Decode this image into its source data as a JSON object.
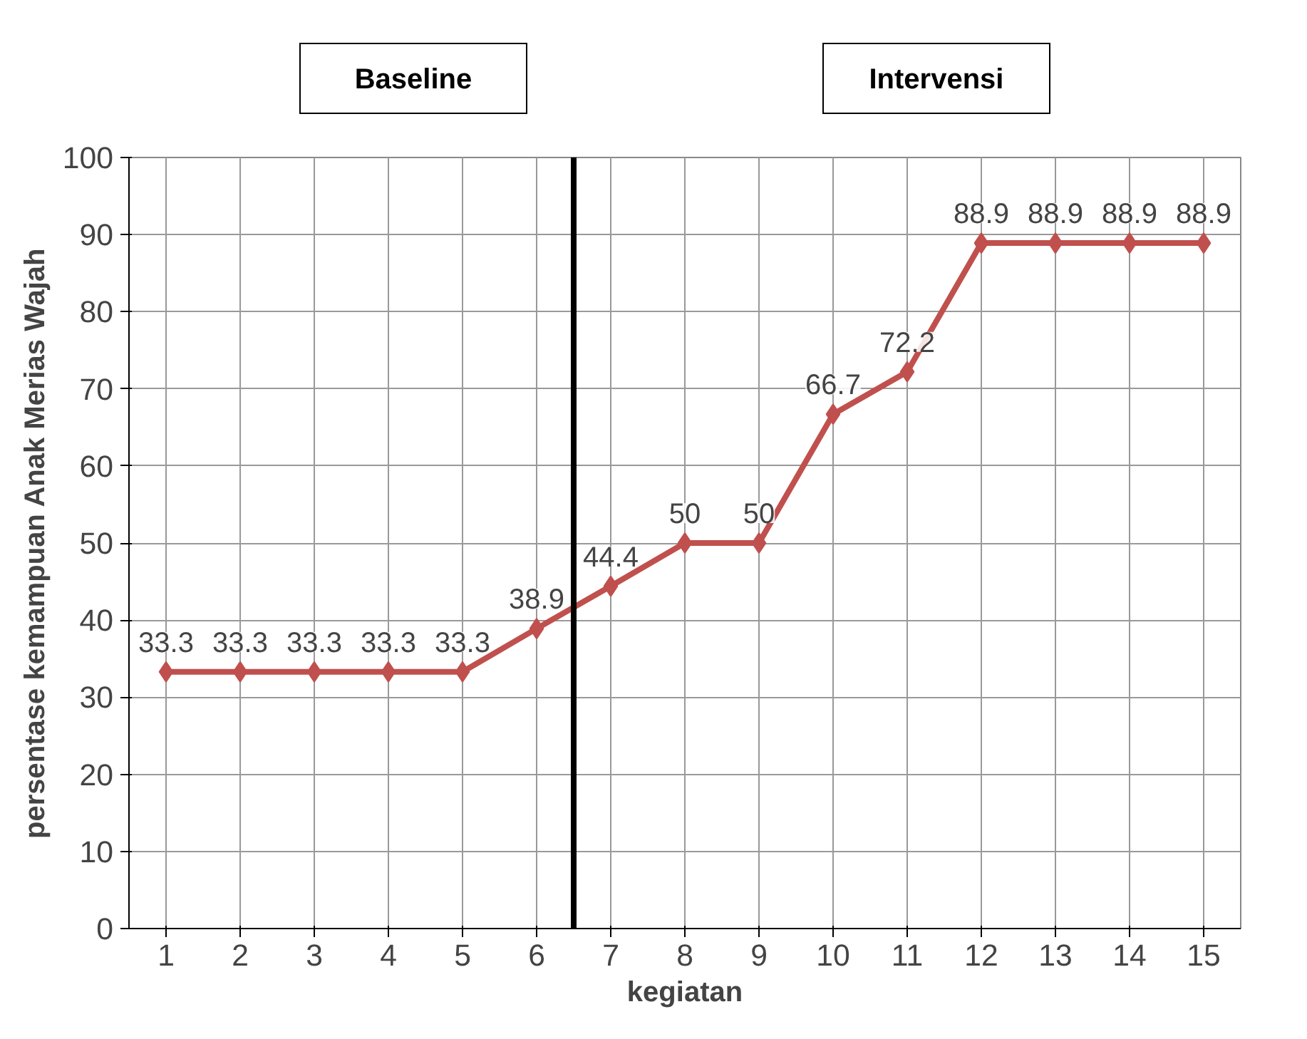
{
  "chart_data": {
    "type": "line",
    "xlabel": "kegiatan",
    "ylabel": "persentase kemampuan Anak Merias Wajah",
    "x": [
      1,
      2,
      3,
      4,
      5,
      6,
      7,
      8,
      9,
      10,
      11,
      12,
      13,
      14,
      15
    ],
    "xlim": [
      0.5,
      15.5
    ],
    "xticks": [
      1,
      2,
      3,
      4,
      5,
      6,
      7,
      8,
      9,
      10,
      11,
      12,
      13,
      14,
      15
    ],
    "ylim": [
      0,
      100
    ],
    "yticks": [
      0,
      10,
      20,
      30,
      40,
      50,
      60,
      70,
      80,
      90,
      100
    ],
    "series": [
      {
        "color": "#c0504d",
        "values": [
          33.3,
          33.3,
          33.3,
          33.3,
          33.3,
          38.9,
          44.4,
          50,
          50,
          66.7,
          72.2,
          88.9,
          88.9,
          88.9,
          88.9
        ]
      }
    ],
    "data_labels": true,
    "marker": "diamond",
    "line_style": "solid",
    "grid": true,
    "ref_lines": [
      {
        "axis": "x",
        "value": 6.5,
        "color": "#000000"
      }
    ],
    "annotations": [
      "Baseline",
      "Intervensi"
    ]
  }
}
